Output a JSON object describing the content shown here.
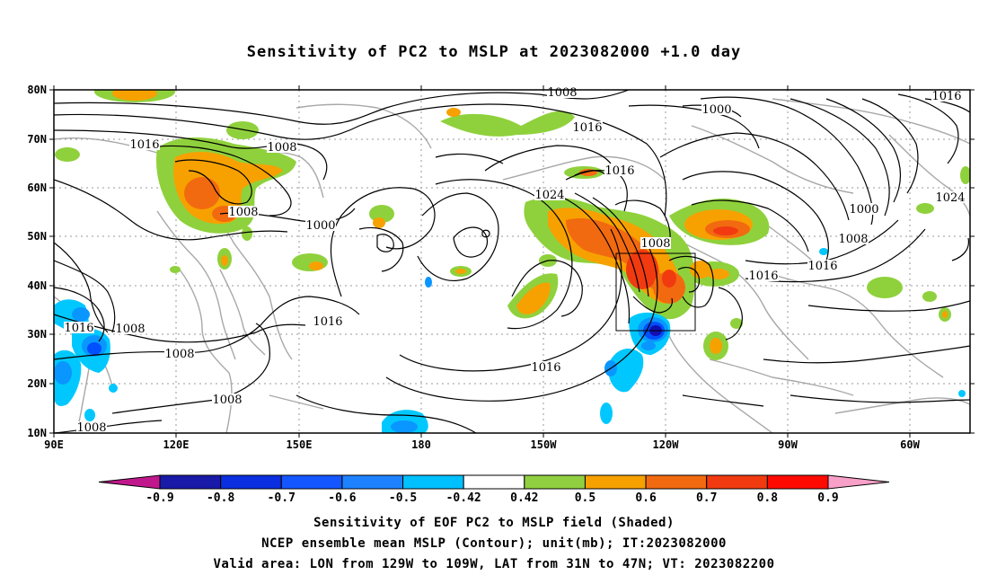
{
  "title": "Sensitivity of PC2 to MSLP at 2023082000 +1.0 day",
  "captions": {
    "line1": "Sensitivity of EOF PC2 to MSLP field (Shaded)",
    "line2": "NCEP ensemble mean MSLP (Contour); unit(mb); IT:2023082000",
    "line3": "Valid area: LON from 129W to 109W, LAT from 31N to 47N; VT: 2023082200"
  },
  "map": {
    "lat_labels": [
      "80N",
      "70N",
      "60N",
      "50N",
      "40N",
      "30N",
      "20N",
      "10N"
    ],
    "lon_labels": [
      "90E",
      "120E",
      "150E",
      "180",
      "150W",
      "120W",
      "90W",
      "60W"
    ],
    "contour_labels": [
      "1008",
      "1016",
      "1016",
      "1008",
      "1000",
      "1008",
      "1000",
      "1016",
      "1024",
      "1016",
      "1016",
      "1008",
      "1016",
      "1008",
      "1000",
      "1024",
      "1008",
      "1016",
      "1016",
      "1008",
      "1008",
      "1008",
      "1016",
      "1008"
    ],
    "colors": {
      "contour": "#000000",
      "coast": "#a8a8a8",
      "green": "#8fd13c",
      "orange": "#f7a100",
      "dark_orange": "#f26a10",
      "red_orange": "#f23a10",
      "light_blue": "#00c8ff",
      "mid_blue": "#0a96ff",
      "blue": "#0050ff",
      "navy": "#1010b0"
    }
  },
  "colorbar": {
    "labels": [
      "-0.9",
      "-0.8",
      "-0.7",
      "-0.6",
      "-0.5",
      "-0.42",
      "0.42",
      "0.5",
      "0.6",
      "0.7",
      "0.8",
      "0.9"
    ],
    "colors": [
      "#c0188c",
      "#1a1aa8",
      "#0a2ee0",
      "#1456ff",
      "#1e82ff",
      "#00c0ff",
      "#ffffff",
      "#90d040",
      "#f7a100",
      "#f26a10",
      "#f23a10",
      "#ff0a00",
      "#f8a0c8"
    ]
  }
}
